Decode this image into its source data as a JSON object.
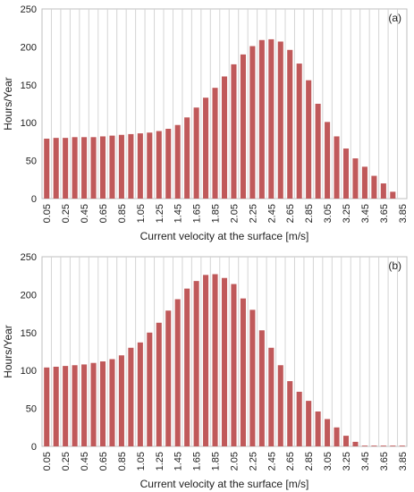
{
  "chart_data": [
    {
      "type": "bar",
      "panel_label": "(a)",
      "xlabel": "Current velocity at the surface [m/s]",
      "ylabel": "Hours/Year",
      "ylim": [
        0,
        250
      ],
      "yticks": [
        0,
        50,
        100,
        150,
        200,
        250
      ],
      "grid": "vertical",
      "bar_color": "#c0595a",
      "categories": [
        "0.05",
        "0.15",
        "0.25",
        "0.35",
        "0.45",
        "0.55",
        "0.65",
        "0.75",
        "0.85",
        "0.95",
        "1.05",
        "1.15",
        "1.25",
        "1.35",
        "1.45",
        "1.55",
        "1.65",
        "1.75",
        "1.85",
        "1.95",
        "2.05",
        "2.15",
        "2.25",
        "2.35",
        "2.45",
        "2.55",
        "2.65",
        "2.75",
        "2.85",
        "2.95",
        "3.05",
        "3.15",
        "3.25",
        "3.35",
        "3.45",
        "3.55",
        "3.65",
        "3.75",
        "3.85"
      ],
      "tick_labels": [
        "0.05",
        "",
        "0.25",
        "",
        "0.45",
        "",
        "0.65",
        "",
        "0.85",
        "",
        "1.05",
        "",
        "1.25",
        "",
        "1.45",
        "",
        "1.65",
        "",
        "1.85",
        "",
        "2.05",
        "",
        "2.25",
        "",
        "2.45",
        "",
        "2.65",
        "",
        "2.85",
        "",
        "3.05",
        "",
        "3.25",
        "",
        "3.45",
        "",
        "3.65",
        "",
        "3.85"
      ],
      "values": [
        79,
        80,
        80,
        81,
        81,
        81,
        82,
        83,
        84,
        85,
        86,
        87,
        89,
        92,
        97,
        107,
        120,
        133,
        146,
        161,
        177,
        190,
        201,
        209,
        210,
        207,
        196,
        178,
        156,
        125,
        101,
        82,
        66,
        53,
        42,
        30,
        20,
        9,
        0
      ]
    },
    {
      "type": "bar",
      "panel_label": "(b)",
      "xlabel": "Current velocity at the surface [m/s]",
      "ylabel": "Hours/Year",
      "ylim": [
        0,
        250
      ],
      "yticks": [
        0,
        50,
        100,
        150,
        200,
        250
      ],
      "grid": "vertical",
      "bar_color": "#c0595a",
      "categories": [
        "0.05",
        "0.15",
        "0.25",
        "0.35",
        "0.45",
        "0.55",
        "0.65",
        "0.75",
        "0.85",
        "0.95",
        "1.05",
        "1.15",
        "1.25",
        "1.35",
        "1.45",
        "1.55",
        "1.65",
        "1.75",
        "1.85",
        "1.95",
        "2.05",
        "2.15",
        "2.25",
        "2.35",
        "2.45",
        "2.55",
        "2.65",
        "2.75",
        "2.85",
        "2.95",
        "3.05",
        "3.15",
        "3.25",
        "3.35",
        "3.45",
        "3.55",
        "3.65",
        "3.75",
        "3.85"
      ],
      "tick_labels": [
        "0.05",
        "",
        "0.25",
        "",
        "0.45",
        "",
        "0.65",
        "",
        "0.85",
        "",
        "1.05",
        "",
        "1.25",
        "",
        "1.45",
        "",
        "1.65",
        "",
        "1.85",
        "",
        "2.05",
        "",
        "2.25",
        "",
        "2.45",
        "",
        "2.65",
        "",
        "2.85",
        "",
        "3.05",
        "",
        "3.25",
        "",
        "3.45",
        "",
        "3.65",
        "",
        "3.85"
      ],
      "values": [
        104,
        105,
        106,
        107,
        108,
        110,
        112,
        115,
        120,
        130,
        137,
        150,
        163,
        179,
        194,
        208,
        218,
        226,
        227,
        222,
        214,
        195,
        180,
        153,
        130,
        107,
        86,
        72,
        60,
        46,
        36,
        25,
        14,
        6,
        1,
        1,
        1,
        1,
        1
      ]
    }
  ]
}
